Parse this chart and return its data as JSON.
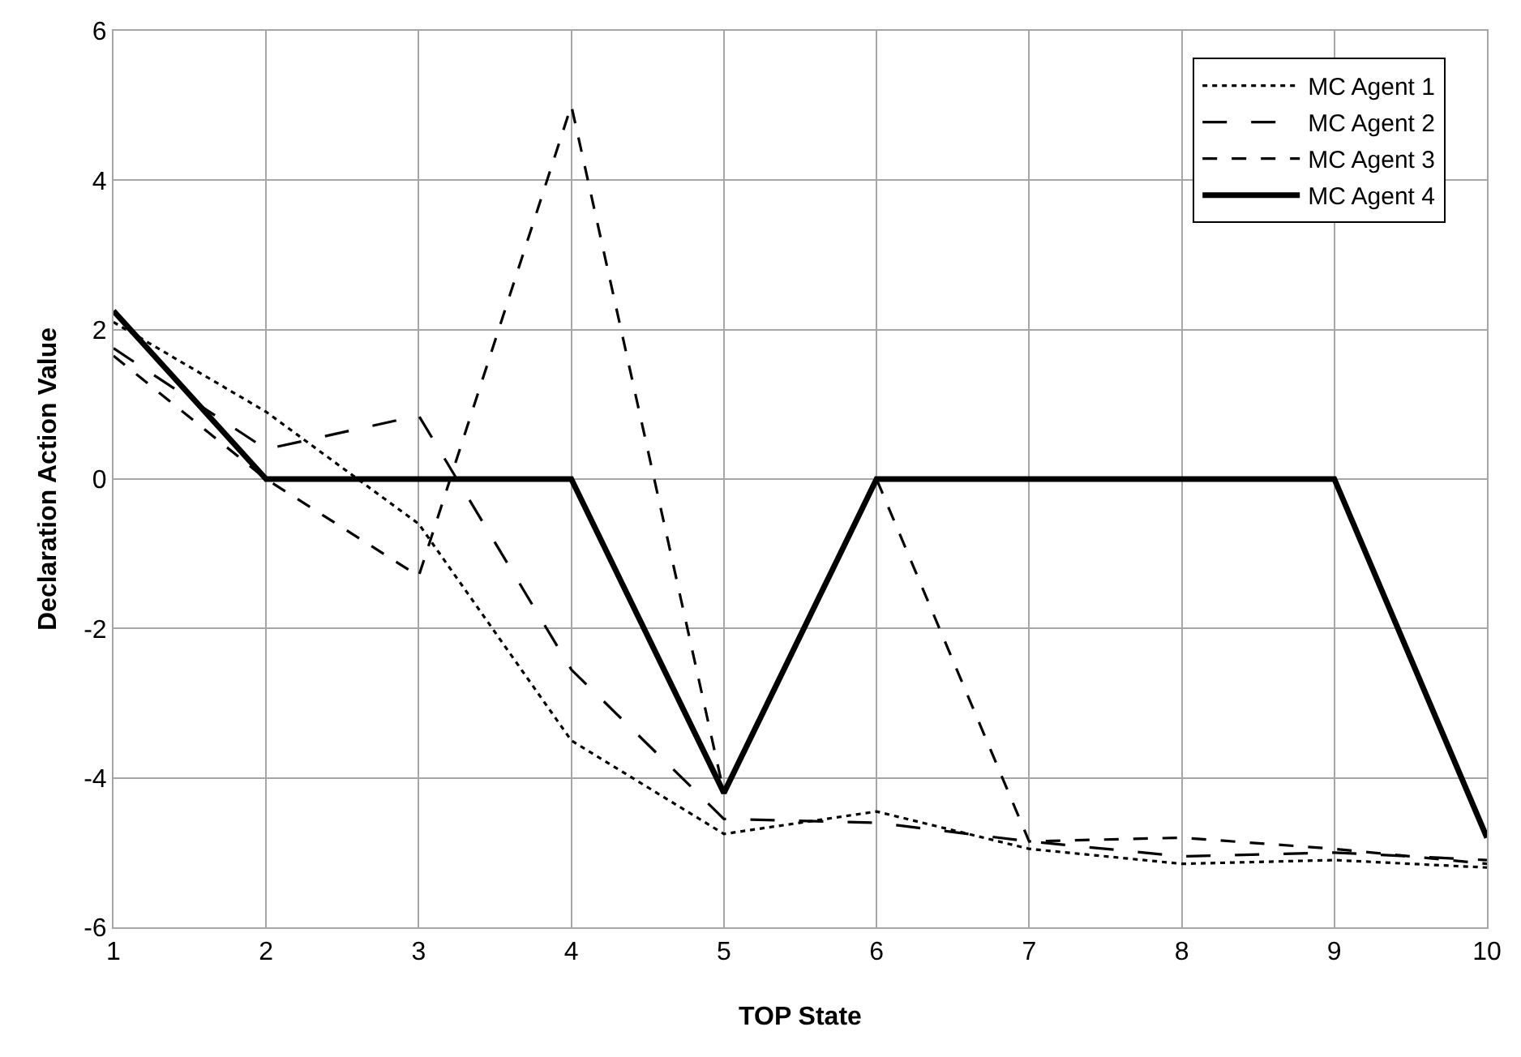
{
  "chart_data": {
    "type": "line",
    "xlabel": "TOP State",
    "ylabel": "Declaration Action Value",
    "x": [
      1,
      2,
      3,
      4,
      5,
      6,
      7,
      8,
      9,
      10
    ],
    "series": [
      {
        "name": "MC Agent 1",
        "color": "#000000",
        "line_style": "dotted",
        "values": [
          2.1,
          0.9,
          -0.6,
          -3.5,
          -4.75,
          -4.45,
          -4.95,
          -5.15,
          -5.1,
          -5.2
        ]
      },
      {
        "name": "MC Agent 2",
        "color": "#000000",
        "line_style": "dashed",
        "values": [
          1.75,
          0.4,
          0.85,
          -2.55,
          -4.55,
          -4.6,
          -4.85,
          -5.05,
          -5.0,
          -5.1
        ]
      },
      {
        "name": "MC Agent 3",
        "color": "#000000",
        "line_style": "dashed",
        "values": [
          1.65,
          0.0,
          -1.3,
          5.0,
          -4.2,
          0.0,
          -4.85,
          -4.8,
          -4.95,
          -5.15
        ]
      },
      {
        "name": "MC Agent 4",
        "color": "#000000",
        "line_style": "solid",
        "values": [
          2.25,
          0,
          0,
          0,
          -4.2,
          0,
          0,
          0,
          0,
          -4.8
        ]
      }
    ],
    "xlim": [
      1,
      10
    ],
    "xticks": [
      1,
      2,
      3,
      4,
      5,
      6,
      7,
      8,
      9,
      10
    ],
    "ylim": [
      -6,
      6
    ],
    "yticks": [
      -6,
      -4,
      -2,
      0,
      2,
      4,
      6
    ],
    "grid": true,
    "legend": "top right",
    "marker": "none"
  }
}
